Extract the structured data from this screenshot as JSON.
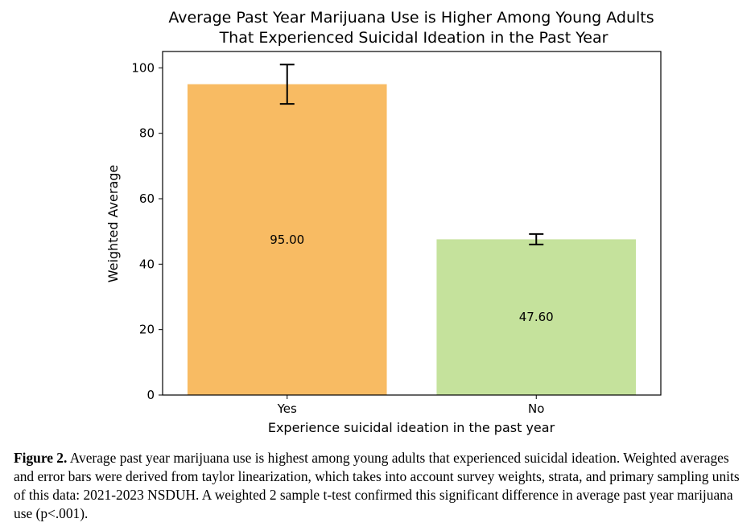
{
  "chart_data": {
    "type": "bar",
    "title_lines": [
      "Average Past Year Marijuana Use is Higher Among Young Adults",
      "That Experienced Suicidal Ideation in the Past Year"
    ],
    "xlabel": "Experience suicidal ideation in the past year",
    "ylabel": "Weighted Average",
    "categories": [
      "Yes",
      "No"
    ],
    "values": [
      95.0,
      47.6
    ],
    "value_labels": [
      "95.00",
      "47.60"
    ],
    "error_low": [
      89.0,
      46.0
    ],
    "error_high": [
      101.0,
      49.2
    ],
    "bar_colors": [
      "#f8bb63",
      "#c5e29c"
    ],
    "ylim": [
      0,
      105
    ],
    "yticks": [
      0,
      20,
      40,
      60,
      80,
      100
    ],
    "ytick_labels": [
      "0",
      "20",
      "40",
      "60",
      "80",
      "100"
    ],
    "grid": false
  },
  "caption": {
    "label": "Figure 2.",
    "text": "Average past year marijuana use is highest among young adults that experienced suicidal ideation. Weighted averages and error bars were derived from taylor linearization, which takes into account survey weights, strata, and primary sampling units of this data: 2021-2023 NSDUH. A weighted 2 sample t-test confirmed this significant difference in average past year marijuana use (p<.001)."
  }
}
